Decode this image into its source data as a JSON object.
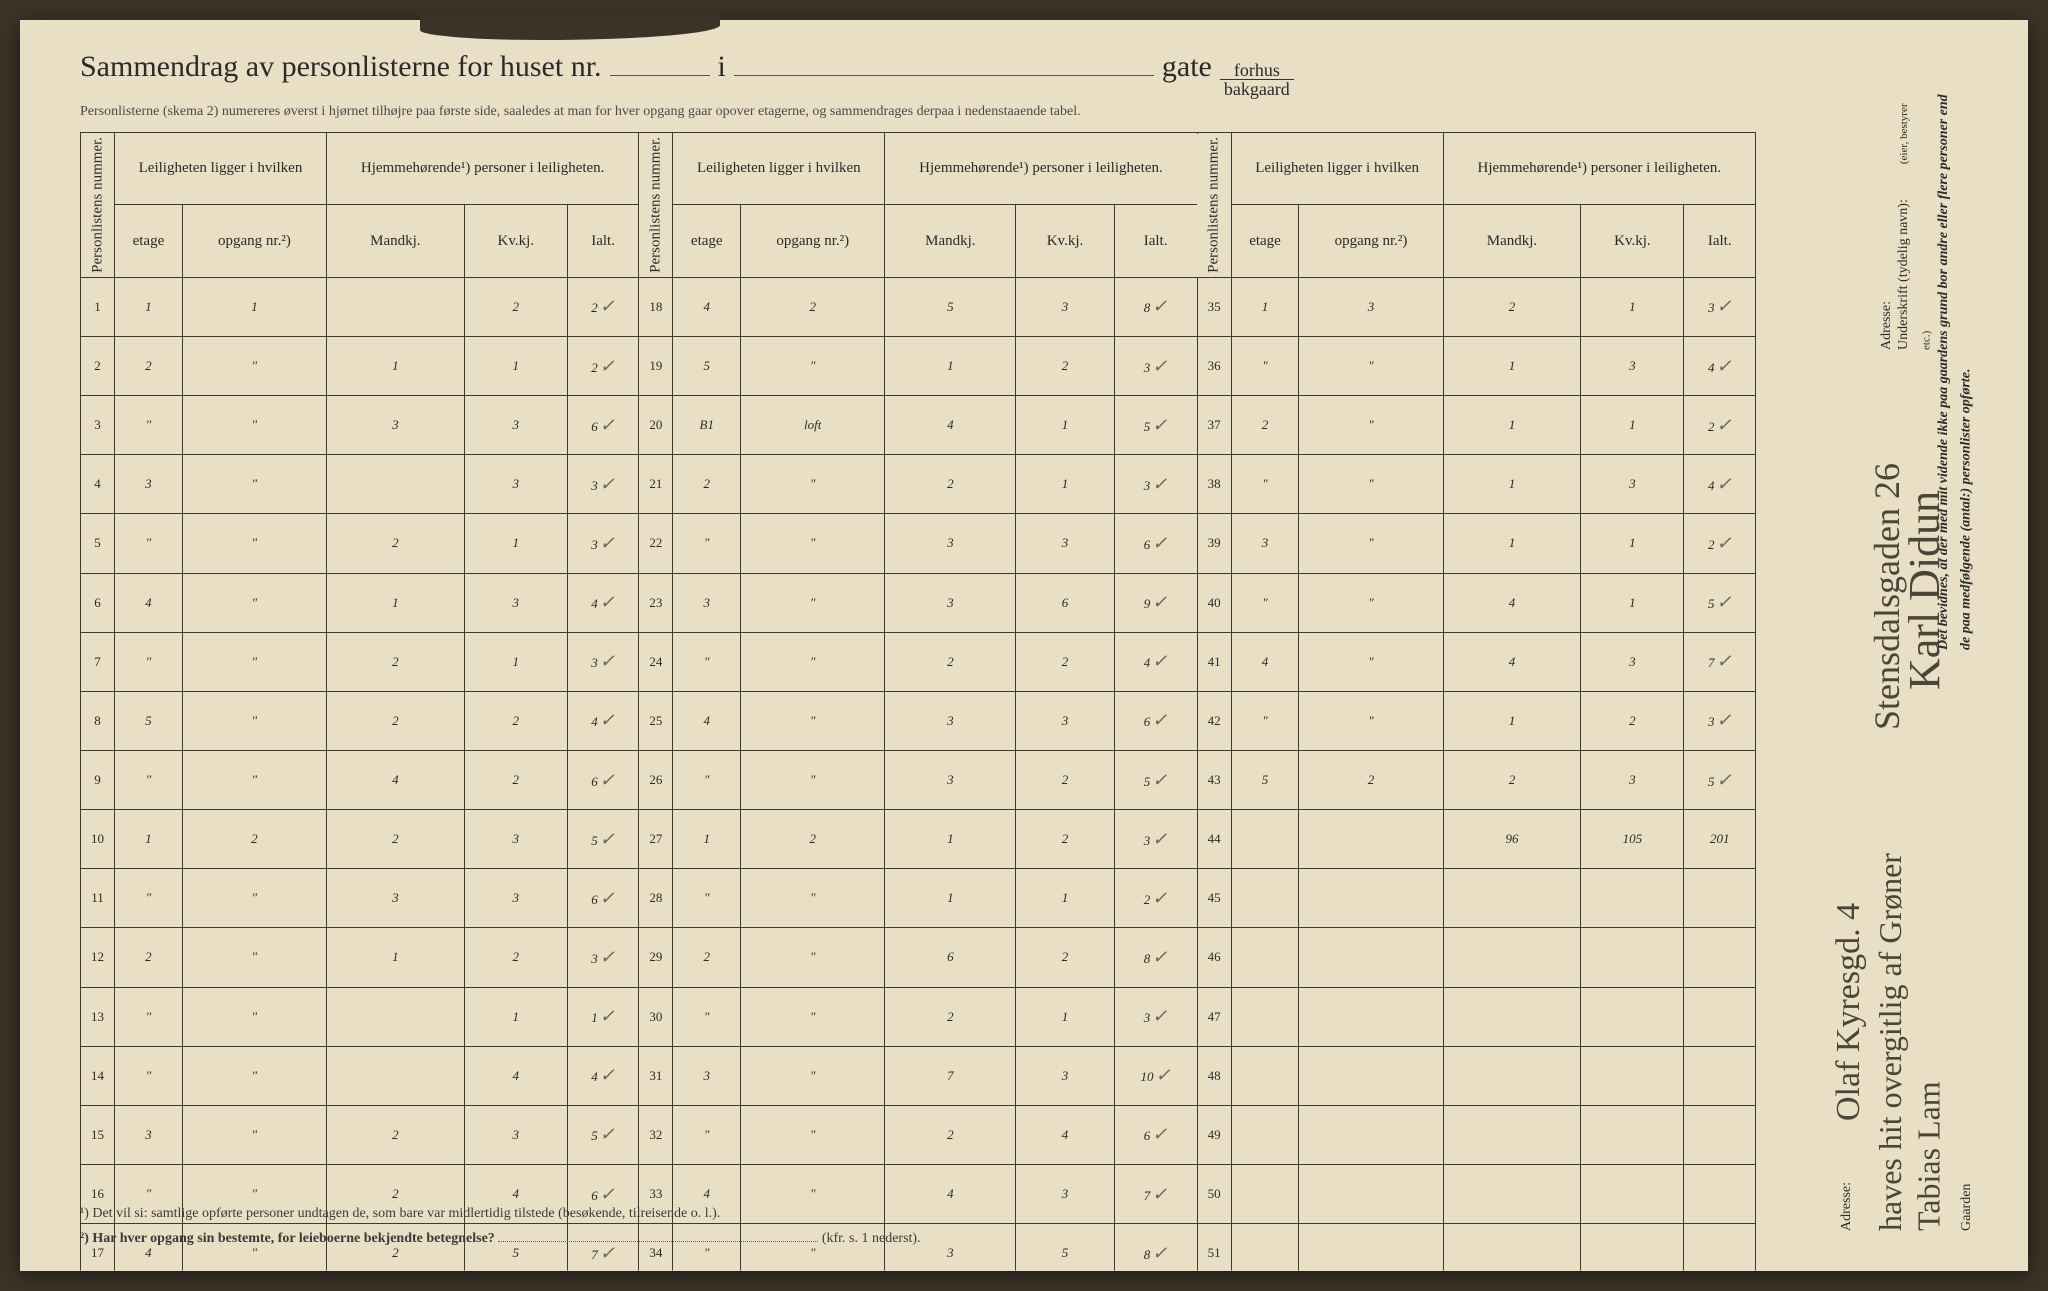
{
  "title": {
    "main": "Sammendrag av personlisterne for huset nr.",
    "i": "i",
    "gate": "gate",
    "forhus": "forhus",
    "bakgaard": "bakgaard"
  },
  "subtitle": "Personlisterne (skema 2) numereres øverst i hjørnet tilhøjre paa første side, saaledes at man for hver opgang gaar opover etagerne, og sammendrages derpaa i nedenstaaende tabel.",
  "headers": {
    "personlistens": "Personlistens nummer.",
    "leiligheten": "Leiligheten ligger i hvilken",
    "hjemme": "Hjemmehørende¹) personer i leiligheten.",
    "etage": "etage",
    "opgang": "opgang nr.²)",
    "mandkj": "Mandkj.",
    "kvkj": "Kv.kj.",
    "ialt": "Ialt."
  },
  "rows1": [
    {
      "n": "1",
      "e": "1",
      "o": "1",
      "m": "",
      "k": "2",
      "i": "2",
      "c": true
    },
    {
      "n": "2",
      "e": "2",
      "o": "\"",
      "m": "1",
      "k": "1",
      "i": "2",
      "c": true
    },
    {
      "n": "3",
      "e": "\"",
      "o": "\"",
      "m": "3",
      "k": "3",
      "i": "6",
      "c": true
    },
    {
      "n": "4",
      "e": "3",
      "o": "\"",
      "m": "",
      "k": "3",
      "i": "3",
      "c": true
    },
    {
      "n": "5",
      "e": "\"",
      "o": "\"",
      "m": "2",
      "k": "1",
      "i": "3",
      "c": true
    },
    {
      "n": "6",
      "e": "4",
      "o": "\"",
      "m": "1",
      "k": "3",
      "i": "4",
      "c": true
    },
    {
      "n": "7",
      "e": "\"",
      "o": "\"",
      "m": "2",
      "k": "1",
      "i": "3",
      "c": true
    },
    {
      "n": "8",
      "e": "5",
      "o": "\"",
      "m": "2",
      "k": "2",
      "i": "4",
      "c": true
    },
    {
      "n": "9",
      "e": "\"",
      "o": "\"",
      "m": "4",
      "k": "2",
      "i": "6",
      "c": true
    },
    {
      "n": "10",
      "e": "1",
      "o": "2",
      "m": "2",
      "k": "3",
      "i": "5",
      "c": true
    },
    {
      "n": "11",
      "e": "\"",
      "o": "\"",
      "m": "3",
      "k": "3",
      "i": "6",
      "c": true
    },
    {
      "n": "12",
      "e": "2",
      "o": "\"",
      "m": "1",
      "k": "2",
      "i": "3",
      "c": true
    },
    {
      "n": "13",
      "e": "\"",
      "o": "\"",
      "m": "",
      "k": "1",
      "i": "1",
      "c": true
    },
    {
      "n": "14",
      "e": "\"",
      "o": "\"",
      "m": "",
      "k": "4",
      "i": "4",
      "c": true
    },
    {
      "n": "15",
      "e": "3",
      "o": "\"",
      "m": "2",
      "k": "3",
      "i": "5",
      "c": true
    },
    {
      "n": "16",
      "e": "\"",
      "o": "\"",
      "m": "2",
      "k": "4",
      "i": "6",
      "c": true
    },
    {
      "n": "17",
      "e": "4",
      "o": "\"",
      "m": "2",
      "k": "5",
      "i": "7",
      "c": true
    }
  ],
  "rows2": [
    {
      "n": "18",
      "e": "4",
      "o": "2",
      "m": "5",
      "k": "3",
      "i": "8",
      "c": true
    },
    {
      "n": "19",
      "e": "5",
      "o": "\"",
      "m": "1",
      "k": "2",
      "i": "3",
      "c": true
    },
    {
      "n": "20",
      "e": "B1",
      "o": "loft",
      "m": "4",
      "k": "1",
      "i": "5",
      "c": true
    },
    {
      "n": "21",
      "e": "2",
      "o": "\"",
      "m": "2",
      "k": "1",
      "i": "3",
      "c": true
    },
    {
      "n": "22",
      "e": "\"",
      "o": "\"",
      "m": "3",
      "k": "3",
      "i": "6",
      "c": true
    },
    {
      "n": "23",
      "e": "3",
      "o": "\"",
      "m": "3",
      "k": "6",
      "i": "9",
      "c": true
    },
    {
      "n": "24",
      "e": "\"",
      "o": "\"",
      "m": "2",
      "k": "2",
      "i": "4",
      "c": true
    },
    {
      "n": "25",
      "e": "4",
      "o": "\"",
      "m": "3",
      "k": "3",
      "i": "6",
      "c": true
    },
    {
      "n": "26",
      "e": "\"",
      "o": "\"",
      "m": "3",
      "k": "2",
      "i": "5",
      "c": true
    },
    {
      "n": "27",
      "e": "1",
      "o": "2",
      "m": "1",
      "k": "2",
      "i": "3",
      "c": true
    },
    {
      "n": "28",
      "e": "\"",
      "o": "\"",
      "m": "1",
      "k": "1",
      "i": "2",
      "c": true
    },
    {
      "n": "29",
      "e": "2",
      "o": "\"",
      "m": "6",
      "k": "2",
      "i": "8",
      "c": true
    },
    {
      "n": "30",
      "e": "\"",
      "o": "\"",
      "m": "2",
      "k": "1",
      "i": "3",
      "c": true
    },
    {
      "n": "31",
      "e": "3",
      "o": "\"",
      "m": "7",
      "k": "3",
      "i": "10",
      "c": true
    },
    {
      "n": "32",
      "e": "\"",
      "o": "\"",
      "m": "2",
      "k": "4",
      "i": "6",
      "c": true
    },
    {
      "n": "33",
      "e": "4",
      "o": "\"",
      "m": "4",
      "k": "3",
      "i": "7",
      "c": true
    },
    {
      "n": "34",
      "e": "\"",
      "o": "\"",
      "m": "3",
      "k": "5",
      "i": "8",
      "c": true
    }
  ],
  "rows3": [
    {
      "n": "35",
      "e": "1",
      "o": "3",
      "m": "2",
      "k": "1",
      "i": "3",
      "c": true
    },
    {
      "n": "36",
      "e": "\"",
      "o": "\"",
      "m": "1",
      "k": "3",
      "i": "4",
      "c": true
    },
    {
      "n": "37",
      "e": "2",
      "o": "\"",
      "m": "1",
      "k": "1",
      "i": "2",
      "c": true
    },
    {
      "n": "38",
      "e": "\"",
      "o": "\"",
      "m": "1",
      "k": "3",
      "i": "4",
      "c": true
    },
    {
      "n": "39",
      "e": "3",
      "o": "\"",
      "m": "1",
      "k": "1",
      "i": "2",
      "c": true
    },
    {
      "n": "40",
      "e": "\"",
      "o": "\"",
      "m": "4",
      "k": "1",
      "i": "5",
      "c": true
    },
    {
      "n": "41",
      "e": "4",
      "o": "\"",
      "m": "4",
      "k": "3",
      "i": "7",
      "c": true
    },
    {
      "n": "42",
      "e": "\"",
      "o": "\"",
      "m": "1",
      "k": "2",
      "i": "3",
      "c": true
    },
    {
      "n": "43",
      "e": "5",
      "o": "2",
      "m": "2",
      "k": "3",
      "i": "5",
      "c": true
    },
    {
      "n": "44",
      "e": "",
      "o": "",
      "m": "96",
      "k": "105",
      "i": "201",
      "c": false
    },
    {
      "n": "45",
      "e": "",
      "o": "",
      "m": "",
      "k": "",
      "i": "",
      "c": false
    },
    {
      "n": "46",
      "e": "",
      "o": "",
      "m": "",
      "k": "",
      "i": "",
      "c": false
    },
    {
      "n": "47",
      "e": "",
      "o": "",
      "m": "",
      "k": "",
      "i": "",
      "c": false
    },
    {
      "n": "48",
      "e": "",
      "o": "",
      "m": "",
      "k": "",
      "i": "",
      "c": false
    },
    {
      "n": "49",
      "e": "",
      "o": "",
      "m": "",
      "k": "",
      "i": "",
      "c": false
    },
    {
      "n": "50",
      "e": "",
      "o": "",
      "m": "",
      "k": "",
      "i": "",
      "c": false
    },
    {
      "n": "51",
      "e": "",
      "o": "",
      "m": "",
      "k": "",
      "i": "",
      "c": false
    }
  ],
  "footnotes": {
    "f1": "¹) Det vil si: samtlige opførte personer undtagen de, som bare var midlertidig tilstede (besøkende, tilreisende o. l.).",
    "f2a": "²) Har hver opgang sin bestemte, for leieboerne bekjendte betegnelse?",
    "f2b": "(kfr. s. 1 nederst)."
  },
  "sidebar": {
    "attest": "Det bevidnes, at der med mit vidende ikke paa gaardens grund bor andre eller flere personer end de paa medfølgende (antal:) personlister opførte.",
    "underskrift": "Underskrift (tydelig navn):",
    "eier": "(eier, bestyrer etc.)",
    "adresse": "Adresse:",
    "sig_name": "Karl Didun",
    "sig_addr": "Stensdalsgaden 26",
    "gaarden": "Gaarden",
    "gaarden_hw": "haves hit overgitlig af Grøner Tabias Lam",
    "adresse2": "Adresse:",
    "adresse2_hw": "Olaf Kyresgd. 4"
  },
  "style": {
    "paper_bg": "#e8dfc4",
    "ink": "#2a2a2a",
    "hw_color": "#5a5548",
    "border": "#3a3a3a",
    "title_fontsize": 30,
    "cell_fontsize": 13,
    "hw_fontsize": 32
  }
}
